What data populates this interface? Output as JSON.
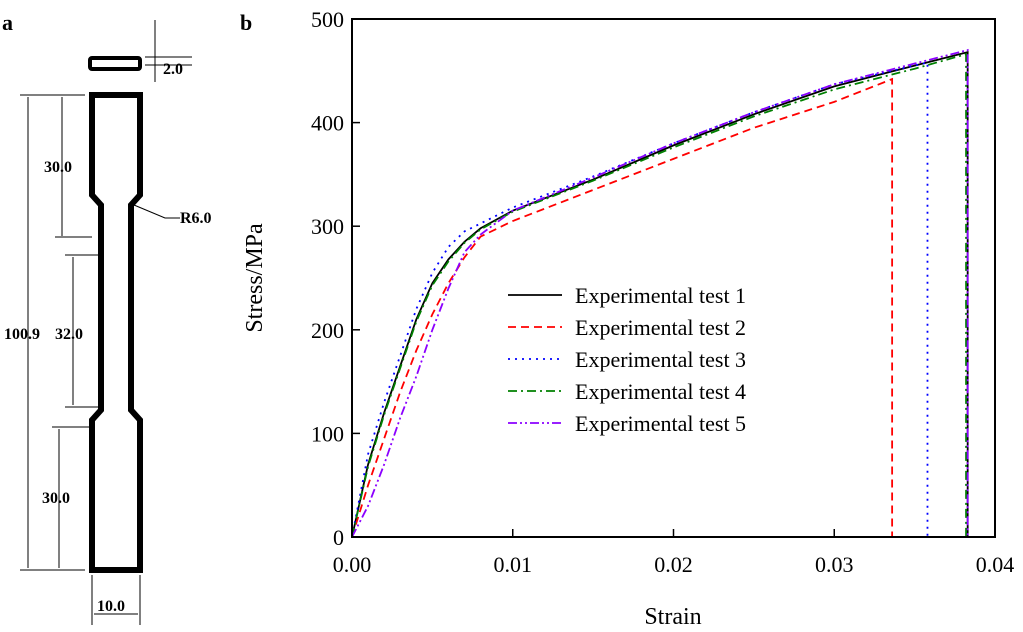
{
  "panel_a": {
    "label": "a",
    "dimensions": {
      "thickness": "2.0",
      "grip_top": "30.0",
      "total_length": "100.9",
      "gauge_length": "32.0",
      "grip_bottom": "30.0",
      "radius": "R6.0",
      "width": "10.0"
    }
  },
  "chart_data": {
    "type": "line",
    "panel_label": "b",
    "xlabel": "Strain",
    "ylabel": "Stress/MPa",
    "xlim": [
      0,
      0.04
    ],
    "ylim": [
      0,
      500
    ],
    "xticks": [
      "0.00",
      "0.01",
      "0.02",
      "0.03",
      "0.04"
    ],
    "yticks": [
      "0",
      "100",
      "200",
      "300",
      "400",
      "500"
    ],
    "grid": false,
    "legend_position": "center",
    "series": [
      {
        "name": "Experimental test 1",
        "color": "#000000",
        "dash": "solid",
        "points": [
          [
            0,
            0
          ],
          [
            0.001,
            70
          ],
          [
            0.002,
            120
          ],
          [
            0.003,
            165
          ],
          [
            0.004,
            210
          ],
          [
            0.005,
            245
          ],
          [
            0.006,
            268
          ],
          [
            0.007,
            285
          ],
          [
            0.008,
            298
          ],
          [
            0.01,
            315
          ],
          [
            0.015,
            345
          ],
          [
            0.02,
            378
          ],
          [
            0.025,
            408
          ],
          [
            0.03,
            435
          ],
          [
            0.035,
            455
          ],
          [
            0.0383,
            468
          ],
          [
            0.0383,
            0
          ],
          [
            0.04,
            0
          ]
        ]
      },
      {
        "name": "Experimental test 2",
        "color": "#ff0000",
        "dash": "dashed",
        "points": [
          [
            0,
            0
          ],
          [
            0.001,
            50
          ],
          [
            0.002,
            95
          ],
          [
            0.003,
            140
          ],
          [
            0.004,
            180
          ],
          [
            0.005,
            215
          ],
          [
            0.006,
            245
          ],
          [
            0.007,
            270
          ],
          [
            0.008,
            290
          ],
          [
            0.01,
            305
          ],
          [
            0.015,
            335
          ],
          [
            0.02,
            365
          ],
          [
            0.025,
            395
          ],
          [
            0.03,
            420
          ],
          [
            0.0336,
            442
          ],
          [
            0.0336,
            0
          ]
        ]
      },
      {
        "name": "Experimental test 3",
        "color": "#0000ff",
        "dash": "dotted",
        "points": [
          [
            0,
            0
          ],
          [
            0.001,
            80
          ],
          [
            0.002,
            130
          ],
          [
            0.003,
            175
          ],
          [
            0.004,
            220
          ],
          [
            0.005,
            255
          ],
          [
            0.006,
            280
          ],
          [
            0.007,
            295
          ],
          [
            0.01,
            318
          ],
          [
            0.015,
            348
          ],
          [
            0.02,
            380
          ],
          [
            0.025,
            410
          ],
          [
            0.03,
            437
          ],
          [
            0.0358,
            458
          ],
          [
            0.0358,
            0
          ]
        ]
      },
      {
        "name": "Experimental test 4",
        "color": "#008000",
        "dash": "dash-dot",
        "points": [
          [
            0,
            0
          ],
          [
            0.001,
            68
          ],
          [
            0.002,
            118
          ],
          [
            0.003,
            163
          ],
          [
            0.004,
            208
          ],
          [
            0.005,
            243
          ],
          [
            0.006,
            266
          ],
          [
            0.007,
            284
          ],
          [
            0.008,
            297
          ],
          [
            0.01,
            314
          ],
          [
            0.015,
            344
          ],
          [
            0.02,
            376
          ],
          [
            0.025,
            406
          ],
          [
            0.03,
            432
          ],
          [
            0.035,
            452
          ],
          [
            0.0382,
            466
          ],
          [
            0.0382,
            0
          ]
        ]
      },
      {
        "name": "Experimental test 5",
        "color": "#8b00ff",
        "dash": "dash-dot-dot",
        "points": [
          [
            0,
            0
          ],
          [
            0.001,
            30
          ],
          [
            0.002,
            70
          ],
          [
            0.003,
            115
          ],
          [
            0.004,
            155
          ],
          [
            0.005,
            200
          ],
          [
            0.006,
            240
          ],
          [
            0.007,
            275
          ],
          [
            0.008,
            292
          ],
          [
            0.01,
            315
          ],
          [
            0.015,
            347
          ],
          [
            0.02,
            380
          ],
          [
            0.025,
            410
          ],
          [
            0.03,
            437
          ],
          [
            0.035,
            457
          ],
          [
            0.0383,
            470
          ],
          [
            0.0383,
            0
          ]
        ]
      }
    ]
  }
}
